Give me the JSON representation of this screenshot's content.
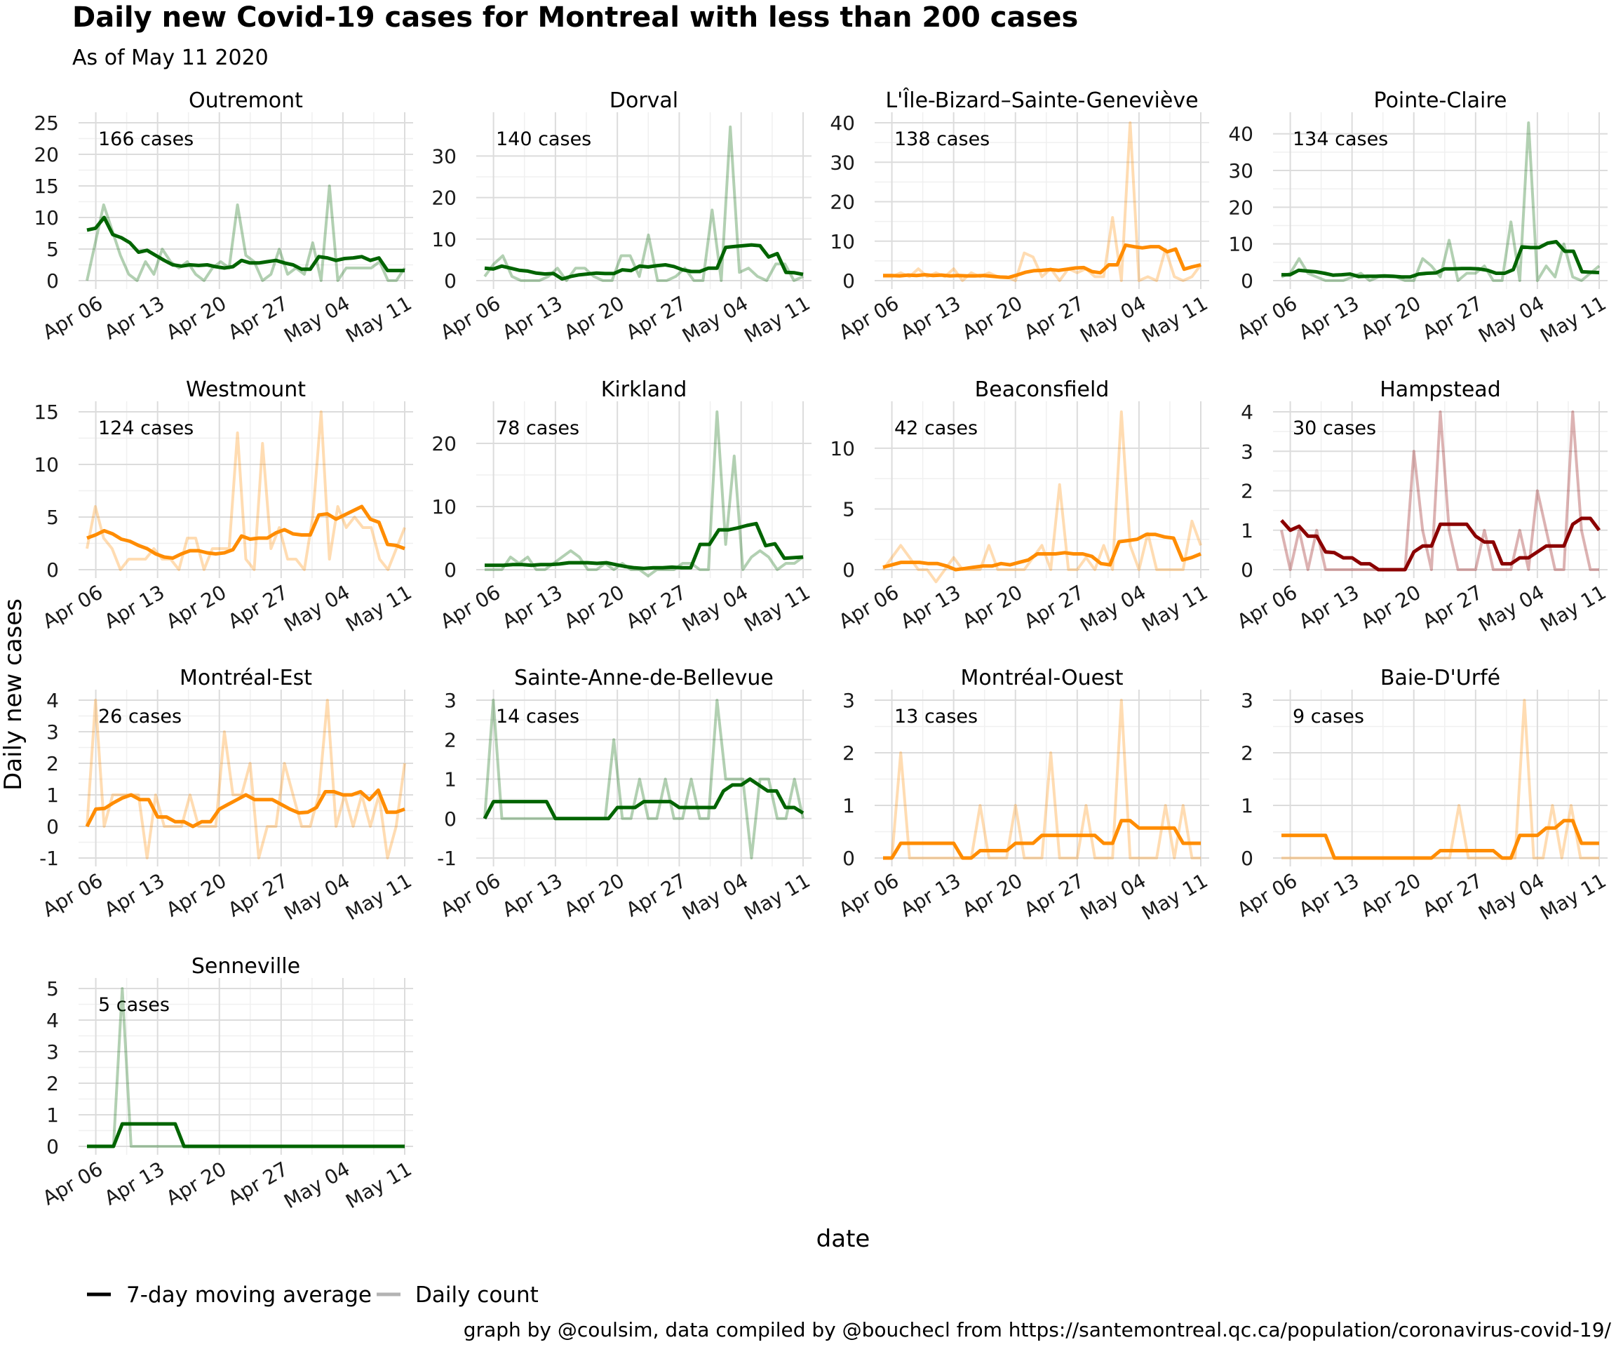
{
  "title": "Daily new Covid-19 cases for Montreal with less than 200 cases",
  "subtitle": "As of May 11 2020",
  "xlabel": "date",
  "ylabel": "Daily new cases",
  "caption": "graph by @coulsim, data compiled by @bouchecl from https://santemontreal.qc.ca/population/coronavirus-covid-19/",
  "legend": [
    {
      "label": "7-day moving average",
      "color": "#000000"
    },
    {
      "label": "Daily count",
      "color": "#b3b3b3"
    }
  ],
  "colors": {
    "green": "#006400",
    "orange": "#ff8c00",
    "darkred": "#8b0000"
  },
  "chart_data": {
    "type": "line",
    "x_start": "2020-04-05",
    "x_end": "2020-05-11",
    "x_ticks": [
      "Apr 06",
      "Apr 13",
      "Apr 20",
      "Apr 27",
      "May 04",
      "May 11"
    ],
    "panels": [
      {
        "title": "Outremont",
        "label": "166 cases",
        "color": "green",
        "ylim": [
          0,
          25
        ],
        "yticks": [
          0,
          5,
          10,
          15,
          20,
          25
        ],
        "daily": [
          0,
          6,
          12,
          8,
          4,
          1,
          0,
          3,
          1,
          5,
          3,
          2,
          3,
          1,
          0,
          2,
          3,
          2,
          12,
          4,
          3,
          0,
          1,
          5,
          1,
          2,
          1,
          6,
          0,
          15,
          0,
          2,
          2,
          2,
          2,
          3,
          0,
          0,
          2
        ],
        "avg": [
          8,
          8.3,
          10,
          7.3,
          6.8,
          6,
          4.5,
          4.8,
          4,
          3.2,
          2.5,
          2.3,
          2.5,
          2.4,
          2.5,
          2.2,
          2.0,
          2.2,
          3.2,
          2.8,
          2.8,
          3.0,
          3.2,
          2.8,
          2.5,
          1.8,
          1.8,
          3.8,
          3.6,
          3.2,
          3.5,
          3.6,
          3.8,
          3.2,
          3.6,
          1.6,
          1.6,
          1.6
        ]
      },
      {
        "title": "Dorval",
        "label": "140 cases",
        "color": "green",
        "ylim": [
          0,
          38
        ],
        "yticks": [
          0,
          10,
          20,
          30
        ],
        "daily": [
          1,
          4,
          6,
          1,
          0,
          0,
          0,
          1,
          3,
          0,
          3,
          3,
          1,
          0,
          0,
          6,
          6,
          1,
          11,
          0,
          0,
          1,
          3,
          0,
          0,
          17,
          0,
          37,
          2,
          3,
          1,
          0,
          4,
          4,
          0,
          1
        ],
        "avg": [
          3,
          2.8,
          3.5,
          3,
          2.5,
          2.3,
          1.8,
          1.6,
          1.7,
          0.4,
          1,
          1.4,
          1.6,
          1.8,
          1.7,
          1.7,
          2.6,
          2.4,
          3.5,
          3.3,
          3.6,
          3.8,
          3.4,
          2.6,
          2.2,
          2.2,
          3,
          3,
          8,
          8.2,
          8.4,
          8.6,
          8.4,
          5.7,
          6.5,
          2,
          1.9,
          1.5
        ]
      },
      {
        "title": "L'Île-Bizard–Sainte-Geneviève",
        "label": "138 cases",
        "color": "orange",
        "ylim": [
          0,
          40
        ],
        "yticks": [
          0,
          10,
          20,
          30,
          40
        ],
        "daily": [
          1,
          1,
          2,
          1,
          3,
          1,
          2,
          1,
          3,
          0,
          2,
          1,
          2,
          1,
          1,
          0,
          7,
          6,
          1,
          3,
          0,
          3,
          2,
          3,
          1,
          1,
          16,
          0,
          40,
          0,
          1,
          0,
          8,
          1,
          0,
          1,
          4
        ],
        "avg": [
          1.3,
          1.3,
          1.2,
          1.4,
          1.3,
          1.5,
          1.3,
          1.4,
          1.2,
          1.3,
          1.2,
          1.2,
          1.3,
          1.1,
          0.9,
          0.8,
          1.4,
          2.1,
          2.5,
          2.6,
          2.8,
          2.6,
          2.9,
          3.2,
          3.3,
          2.3,
          2.0,
          4.0,
          4.0,
          9.0,
          8.6,
          8.3,
          8.6,
          8.6,
          7.3,
          8.0,
          2.9,
          3.5,
          4.0
        ]
      },
      {
        "title": "Pointe-Claire",
        "label": "134 cases",
        "color": "green",
        "ylim": [
          0,
          43
        ],
        "yticks": [
          0,
          10,
          20,
          30,
          40
        ],
        "daily": [
          1,
          2,
          6,
          2,
          1,
          0,
          0,
          0,
          1,
          2,
          0,
          1,
          1,
          1,
          0,
          0,
          6,
          4,
          1,
          11,
          0,
          2,
          2,
          4,
          0,
          0,
          16,
          0,
          43,
          0,
          4,
          1,
          10,
          1,
          0,
          2,
          4
        ],
        "avg": [
          1.6,
          1.6,
          2.8,
          2.6,
          2.4,
          2,
          1.5,
          1.6,
          1.8,
          1.1,
          1.2,
          1.2,
          1.3,
          1.2,
          1.0,
          1.0,
          1.8,
          2.0,
          2.1,
          3.2,
          3.2,
          3.3,
          3.3,
          3.2,
          2.8,
          2.0,
          2.0,
          3.0,
          9.2,
          9.0,
          9.0,
          10.2,
          10.6,
          8.0,
          8.0,
          2.4,
          2.3,
          2.2
        ]
      },
      {
        "title": "Westmount",
        "label": "124 cases",
        "color": "orange",
        "ylim": [
          0,
          15
        ],
        "yticks": [
          0,
          5,
          10,
          15
        ],
        "daily": [
          2,
          6,
          3,
          2,
          0,
          1,
          1,
          1,
          2,
          1,
          1,
          0,
          3,
          3,
          0,
          2,
          2,
          2,
          13,
          1,
          0,
          12,
          2,
          4,
          1,
          1,
          0,
          5,
          15,
          1,
          6,
          4,
          5,
          4,
          4,
          1,
          0,
          2,
          4
        ],
        "avg": [
          3,
          3.3,
          3.7,
          3.4,
          2.9,
          2.7,
          2.3,
          2.0,
          1.5,
          1.2,
          1.1,
          1.5,
          1.8,
          1.8,
          1.6,
          1.5,
          1.6,
          1.9,
          3.2,
          2.9,
          3.0,
          3.0,
          3.5,
          3.8,
          3.4,
          3.3,
          3.3,
          5.2,
          5.3,
          4.8,
          5.2,
          5.6,
          6.0,
          4.8,
          4.5,
          2.4,
          2.3,
          2.0
        ]
      },
      {
        "title": "Kirkland",
        "label": "78 cases",
        "color": "green",
        "ylim": [
          0,
          25
        ],
        "yticks": [
          0,
          10,
          20
        ],
        "daily": [
          0,
          0,
          0,
          2,
          1,
          2,
          0,
          0,
          1,
          2,
          3,
          2,
          0,
          0,
          1,
          0,
          1,
          0,
          0,
          -1,
          0,
          0,
          0,
          1,
          1,
          0,
          0,
          25,
          4,
          18,
          0,
          2,
          3,
          2,
          0,
          1,
          1,
          2
        ],
        "avg": [
          0.7,
          0.7,
          0.7,
          0.8,
          0.8,
          0.7,
          0.8,
          0.8,
          0.9,
          1.1,
          1.1,
          1.1,
          1.0,
          1.1,
          0.8,
          0.5,
          0.3,
          0.2,
          0.3,
          0.3,
          0.4,
          0.3,
          0.3,
          4.0,
          4.0,
          6.3,
          6.3,
          6.6,
          7.0,
          7.3,
          3.8,
          4.1,
          1.8,
          1.9,
          2.0
        ]
      },
      {
        "title": "Beaconsfield",
        "label": "42 cases",
        "color": "orange",
        "ylim": [
          0,
          13
        ],
        "yticks": [
          0,
          5,
          10
        ],
        "daily": [
          0,
          1,
          2,
          1,
          0,
          0,
          -1,
          0,
          1,
          0,
          0,
          0,
          2,
          0,
          0,
          0,
          0,
          1,
          2,
          0,
          7,
          0,
          0,
          1,
          0,
          2,
          0,
          13,
          2,
          0,
          3,
          0,
          0,
          0,
          0,
          4,
          2
        ],
        "avg": [
          0.2,
          0.4,
          0.6,
          0.6,
          0.6,
          0.5,
          0.5,
          0.3,
          0.0,
          0.1,
          0.2,
          0.3,
          0.3,
          0.5,
          0.4,
          0.6,
          0.8,
          1.3,
          1.3,
          1.3,
          1.4,
          1.3,
          1.3,
          1.1,
          0.5,
          0.4,
          2.3,
          2.4,
          2.5,
          2.9,
          2.9,
          2.7,
          2.6,
          0.8,
          1.0,
          1.3
        ]
      },
      {
        "title": "Hampstead",
        "label": "30 cases",
        "color": "darkred",
        "ylim": [
          0,
          4
        ],
        "yticks": [
          0,
          1,
          2,
          3,
          4
        ],
        "daily": [
          1,
          0,
          1,
          0,
          1,
          0,
          0,
          0,
          0,
          0,
          0,
          0,
          0,
          0,
          0,
          3,
          1,
          0,
          4,
          1,
          0,
          0,
          0,
          1,
          0,
          0,
          0,
          1,
          0,
          2,
          1,
          0,
          0,
          4,
          1,
          0,
          0
        ],
        "avg": [
          1.25,
          1.0,
          1.1,
          0.85,
          0.85,
          0.45,
          0.43,
          0.3,
          0.3,
          0.15,
          0.15,
          0.0,
          0.0,
          0.0,
          0.0,
          0.45,
          0.6,
          0.6,
          1.15,
          1.15,
          1.15,
          1.15,
          0.85,
          0.7,
          0.7,
          0.15,
          0.15,
          0.3,
          0.3,
          0.45,
          0.6,
          0.6,
          0.6,
          1.15,
          1.3,
          1.3,
          1.0
        ]
      },
      {
        "title": "Montréal-Est",
        "label": "26 cases",
        "color": "orange",
        "ylim": [
          -1,
          4
        ],
        "yticks": [
          -1,
          0,
          1,
          2,
          3,
          4
        ],
        "daily": [
          0,
          4,
          0,
          1,
          1,
          1,
          1,
          -1,
          1,
          0,
          0,
          0,
          1,
          0,
          0,
          0,
          3,
          1,
          1,
          2,
          -1,
          0,
          0,
          2,
          1,
          0,
          0,
          1,
          4,
          0,
          1,
          0,
          1,
          0,
          1,
          -1,
          0,
          2
        ],
        "avg": [
          0,
          0.55,
          0.57,
          0.75,
          0.9,
          1.0,
          0.85,
          0.85,
          0.3,
          0.3,
          0.15,
          0.15,
          0.0,
          0.15,
          0.15,
          0.55,
          0.7,
          0.85,
          1.0,
          0.85,
          0.85,
          0.85,
          0.7,
          0.55,
          0.43,
          0.45,
          0.6,
          1.1,
          1.1,
          1.0,
          1.0,
          1.1,
          0.85,
          1.15,
          0.45,
          0.45,
          0.55
        ]
      },
      {
        "title": "Sainte-Anne-de-Bellevue",
        "label": "14 cases",
        "color": "green",
        "ylim": [
          -1,
          3
        ],
        "yticks": [
          -1,
          0,
          1,
          2,
          3
        ],
        "daily": [
          0,
          3,
          0,
          0,
          0,
          0,
          0,
          0,
          0,
          0,
          0,
          0,
          0,
          0,
          0,
          2,
          0,
          0,
          1,
          0,
          0,
          1,
          0,
          0,
          1,
          0,
          0,
          3,
          1,
          1,
          1,
          -1,
          1,
          1,
          0,
          0,
          1,
          0
        ],
        "avg": [
          0,
          0.43,
          0.43,
          0.43,
          0.43,
          0.43,
          0.43,
          0.43,
          0.0,
          0.0,
          0.0,
          0.0,
          0.0,
          0.0,
          0.0,
          0.28,
          0.28,
          0.28,
          0.43,
          0.43,
          0.43,
          0.43,
          0.28,
          0.28,
          0.28,
          0.28,
          0.28,
          0.7,
          0.85,
          0.85,
          1.0,
          0.85,
          0.7,
          0.7,
          0.28,
          0.28,
          0.14
        ]
      },
      {
        "title": "Montréal-Ouest",
        "label": "13 cases",
        "color": "orange",
        "ylim": [
          0,
          3
        ],
        "yticks": [
          0,
          1,
          2,
          3
        ],
        "daily": [
          0,
          0,
          2,
          0,
          0,
          0,
          0,
          0,
          0,
          0,
          0,
          1,
          0,
          0,
          0,
          1,
          0,
          0,
          0,
          2,
          0,
          0,
          0,
          1,
          0,
          0,
          0,
          3,
          0,
          0,
          0,
          0,
          1,
          0,
          1,
          0,
          0
        ],
        "avg": [
          0,
          0,
          0.28,
          0.28,
          0.28,
          0.28,
          0.28,
          0.28,
          0.28,
          0.0,
          0.0,
          0.14,
          0.14,
          0.14,
          0.14,
          0.28,
          0.28,
          0.28,
          0.43,
          0.43,
          0.43,
          0.43,
          0.43,
          0.43,
          0.43,
          0.28,
          0.28,
          0.71,
          0.71,
          0.57,
          0.57,
          0.57,
          0.57,
          0.57,
          0.28,
          0.28,
          0.28
        ]
      },
      {
        "title": "Baie-D'Urfé",
        "label": "9 cases",
        "color": "orange",
        "ylim": [
          0,
          3
        ],
        "yticks": [
          0,
          1,
          2,
          3
        ],
        "daily": [
          0,
          0,
          0,
          0,
          0,
          0,
          0,
          0,
          0,
          0,
          0,
          0,
          0,
          0,
          0,
          0,
          0,
          0,
          0,
          1,
          0,
          0,
          0,
          0,
          0,
          0,
          3,
          0,
          0,
          1,
          0,
          1,
          0,
          0,
          0
        ],
        "avg": [
          0.43,
          0.43,
          0.43,
          0.43,
          0.43,
          0.43,
          0.0,
          0.0,
          0.0,
          0.0,
          0.0,
          0.0,
          0.0,
          0.0,
          0.0,
          0.0,
          0.0,
          0.0,
          0.14,
          0.14,
          0.14,
          0.14,
          0.14,
          0.14,
          0.14,
          0.0,
          0.0,
          0.43,
          0.43,
          0.43,
          0.57,
          0.57,
          0.71,
          0.71,
          0.28,
          0.28,
          0.28
        ]
      },
      {
        "title": "Senneville",
        "label": "5 cases",
        "color": "green",
        "ylim": [
          0,
          5
        ],
        "yticks": [
          0,
          1,
          2,
          3,
          4,
          5
        ],
        "daily": [
          0,
          0,
          0,
          0,
          5,
          0,
          0,
          0,
          0,
          0,
          0,
          0,
          0,
          0,
          0,
          0,
          0,
          0,
          0,
          0,
          0,
          0,
          0,
          0,
          0,
          0,
          0,
          0,
          0,
          0,
          0,
          0,
          0,
          0,
          0,
          0,
          0
        ],
        "avg": [
          0,
          0,
          0,
          0,
          0.71,
          0.71,
          0.71,
          0.71,
          0.71,
          0.71,
          0.71,
          0,
          0,
          0,
          0,
          0,
          0,
          0,
          0,
          0,
          0,
          0,
          0,
          0,
          0,
          0,
          0,
          0,
          0,
          0,
          0,
          0,
          0,
          0,
          0,
          0,
          0
        ]
      }
    ]
  }
}
